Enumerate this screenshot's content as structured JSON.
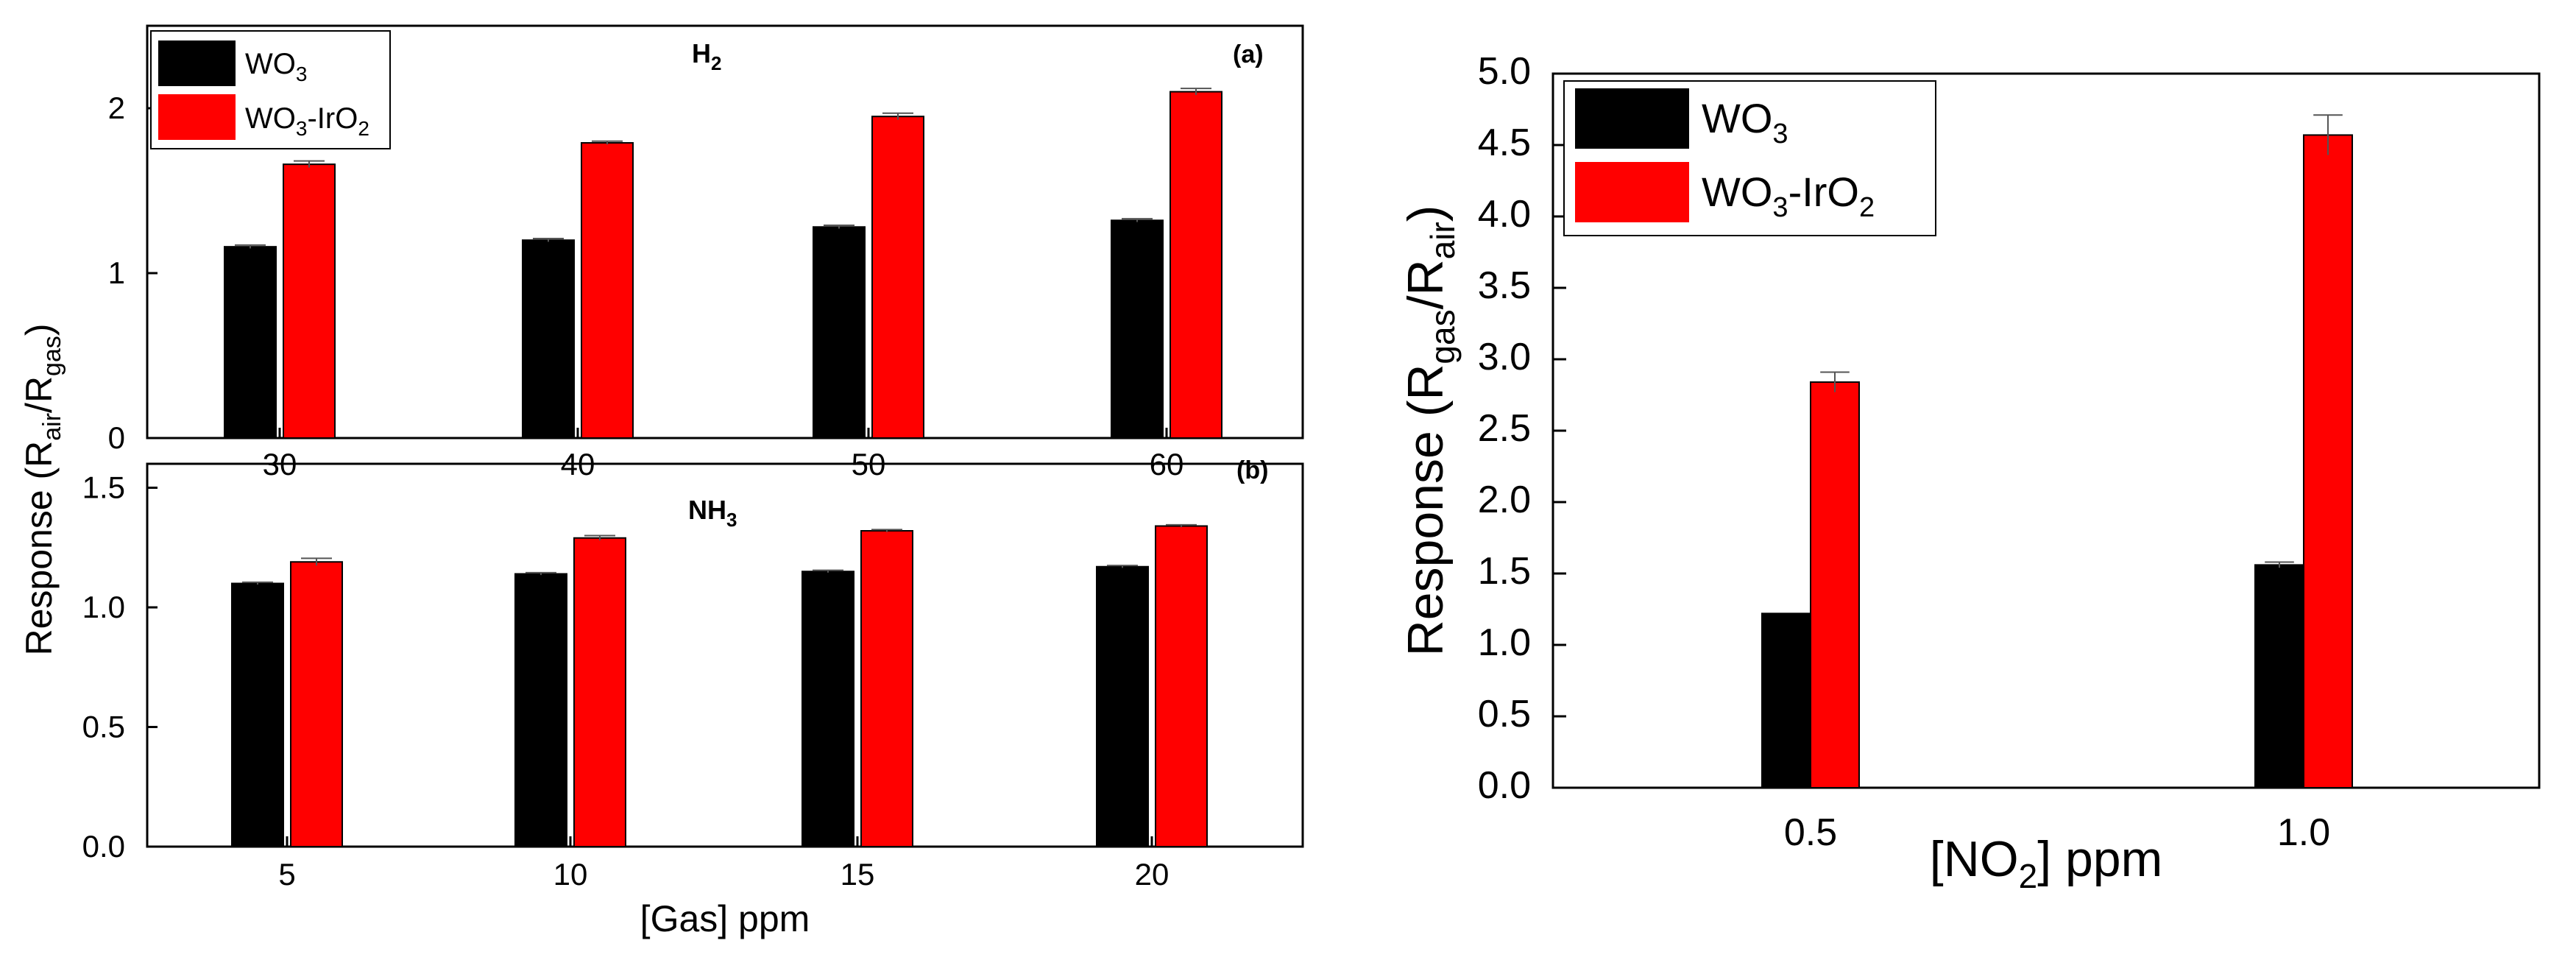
{
  "chart_data": [
    {
      "id": "h2",
      "type": "bar",
      "title": "H2",
      "panel_label": "(a)",
      "categories": [
        "30",
        "40",
        "50",
        "60"
      ],
      "series": [
        {
          "name": "WO3",
          "color": "#000000",
          "values": [
            1.16,
            1.2,
            1.28,
            1.32
          ],
          "errors": [
            0.01,
            0.01,
            0.01,
            0.01
          ]
        },
        {
          "name": "WO3-IrO2",
          "color": "#ff0000",
          "values": [
            1.66,
            1.79,
            1.95,
            2.1
          ],
          "errors": [
            0.02,
            0.01,
            0.02,
            0.02
          ]
        }
      ],
      "ylim": [
        0,
        2.5
      ],
      "yticks": [
        "0",
        "1",
        "2"
      ],
      "ytick_values": [
        0,
        1,
        2
      ],
      "xlabel": "",
      "ylabel": ""
    },
    {
      "id": "nh3",
      "type": "bar",
      "title": "NH3",
      "panel_label": "(b)",
      "categories": [
        "5",
        "10",
        "15",
        "20"
      ],
      "series": [
        {
          "name": "WO3",
          "color": "#000000",
          "values": [
            1.1,
            1.14,
            1.15,
            1.17
          ],
          "errors": [
            0.005,
            0.005,
            0.005,
            0.005
          ]
        },
        {
          "name": "WO3-IrO2",
          "color": "#ff0000",
          "values": [
            1.19,
            1.29,
            1.32,
            1.34
          ],
          "errors": [
            0.015,
            0.01,
            0.005,
            0.005
          ]
        }
      ],
      "ylim": [
        0,
        1.6
      ],
      "yticks": [
        "0.0",
        "0.5",
        "1.0",
        "1.5"
      ],
      "ytick_values": [
        0,
        0.5,
        1.0,
        1.5
      ],
      "xlabel": "[Gas] ppm",
      "ylabel": "Response (Rair/Rgas)"
    },
    {
      "id": "no2",
      "type": "bar",
      "title": "",
      "categories": [
        "0.5",
        "1.0"
      ],
      "series": [
        {
          "name": "WO3",
          "color": "#000000",
          "values": [
            1.22,
            1.56
          ],
          "errors": [
            0.0,
            0.02
          ]
        },
        {
          "name": "WO3-IrO2",
          "color": "#ff0000",
          "values": [
            2.84,
            4.57
          ],
          "errors": [
            0.07,
            0.14
          ]
        }
      ],
      "ylim": [
        0,
        5.0
      ],
      "yticks": [
        "0.0",
        "0.5",
        "1.0",
        "1.5",
        "2.0",
        "2.5",
        "3.0",
        "3.5",
        "4.0",
        "4.5",
        "5.0"
      ],
      "ytick_values": [
        0,
        0.5,
        1.0,
        1.5,
        2.0,
        2.5,
        3.0,
        3.5,
        4.0,
        4.5,
        5.0
      ],
      "xlabel": "[NO2] ppm",
      "ylabel": "Response (Rgas/Rair)"
    }
  ],
  "labels": {
    "h2_title_main": "H",
    "h2_title_sub": "2",
    "nh3_title_main": "NH",
    "nh3_title_sub": "3",
    "legend_wo3_main": "WO",
    "legend_wo3_sub": "3",
    "legend_irO2_pre": "WO",
    "legend_irO2_sub1": "3",
    "legend_irO2_mid": "-IrO",
    "legend_irO2_sub2": "2",
    "left_ylabel_pre": "Response (R",
    "left_ylabel_sub1": "air",
    "left_ylabel_mid": "/R",
    "left_ylabel_sub2": "gas",
    "left_ylabel_post": ")",
    "left_xlabel": "[Gas] ppm",
    "right_ylabel_pre": "Response (R",
    "right_ylabel_sub1": "gas",
    "right_ylabel_mid": "/R",
    "right_ylabel_sub2": "air",
    "right_ylabel_post": ")",
    "right_xlabel_pre": "[NO",
    "right_xlabel_sub": "2",
    "right_xlabel_post": "] ppm"
  }
}
